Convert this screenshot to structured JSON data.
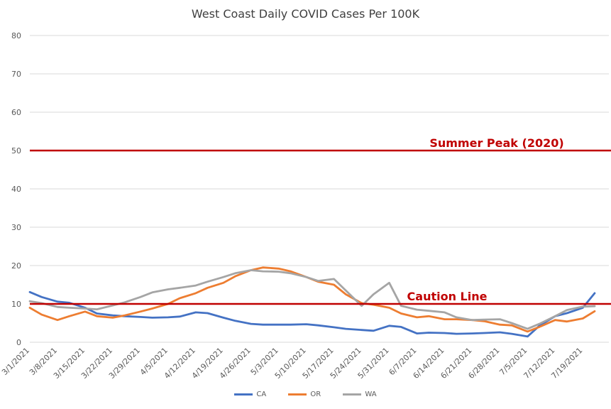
{
  "chart_data": {
    "type": "line",
    "title": "West Coast Daily COVID Cases Per 100K",
    "xlabel": "",
    "ylabel": "",
    "ylim": [
      0,
      80
    ],
    "yticks": [
      0,
      10,
      20,
      30,
      40,
      50,
      60,
      70,
      80
    ],
    "grid": true,
    "legend_position": "bottom",
    "x_tick_labels": [
      "3/1/2021",
      "3/8/2021",
      "3/15/2021",
      "3/22/2021",
      "3/29/2021",
      "4/5/2021",
      "4/12/2021",
      "4/19/2021",
      "4/26/2021",
      "5/3/2021",
      "5/10/2021",
      "5/17/2021",
      "5/24/2021",
      "5/31/2021",
      "6/7/2021",
      "6/14/2021",
      "6/21/2021",
      "6/28/2021",
      "7/5/2021",
      "7/12/2021",
      "7/19/2021"
    ],
    "x_dates": [
      "3/1/2021",
      "3/4/2021",
      "3/8/2021",
      "3/11/2021",
      "3/15/2021",
      "3/18/2021",
      "3/22/2021",
      "3/25/2021",
      "3/29/2021",
      "4/1/2021",
      "4/5/2021",
      "4/8/2021",
      "4/12/2021",
      "4/15/2021",
      "4/19/2021",
      "4/22/2021",
      "4/26/2021",
      "4/29/2021",
      "5/3/2021",
      "5/6/2021",
      "5/10/2021",
      "5/13/2021",
      "5/17/2021",
      "5/20/2021",
      "5/24/2021",
      "5/27/2021",
      "5/31/2021",
      "6/3/2021",
      "6/7/2021",
      "6/10/2021",
      "6/14/2021",
      "6/17/2021",
      "6/21/2021",
      "6/24/2021",
      "6/28/2021",
      "7/1/2021",
      "7/5/2021",
      "7/8/2021",
      "7/12/2021",
      "7/15/2021",
      "7/19/2021",
      "7/22/2021"
    ],
    "series": [
      {
        "name": "CA",
        "color": "#4472C4",
        "values": [
          13.1,
          11.8,
          10.6,
          10.3,
          9.0,
          7.5,
          7.0,
          6.8,
          6.6,
          6.4,
          6.5,
          6.7,
          7.8,
          7.6,
          6.4,
          5.6,
          4.8,
          4.6,
          4.6,
          4.6,
          4.7,
          4.4,
          3.9,
          3.5,
          3.2,
          3.0,
          4.3,
          4.0,
          2.3,
          2.5,
          2.4,
          2.2,
          2.3,
          2.4,
          2.6,
          2.2,
          1.5,
          4.3,
          6.8,
          7.6,
          9.0,
          12.8
        ]
      },
      {
        "name": "OR",
        "color": "#ED7D31",
        "values": [
          9.0,
          7.2,
          5.8,
          6.8,
          8.0,
          6.8,
          6.4,
          7.0,
          8.0,
          8.8,
          10.0,
          11.5,
          12.8,
          14.2,
          15.5,
          17.2,
          18.8,
          19.5,
          19.2,
          18.5,
          17.0,
          15.8,
          15.0,
          12.5,
          10.2,
          9.8,
          9.0,
          7.5,
          6.5,
          6.8,
          6.0,
          6.0,
          5.8,
          5.5,
          4.6,
          4.4,
          2.8,
          4.0,
          5.8,
          5.4,
          6.2,
          8.1
        ]
      },
      {
        "name": "WA",
        "color": "#A5A5A5",
        "values": [
          10.7,
          10.2,
          9.2,
          9.0,
          8.8,
          8.6,
          9.6,
          10.4,
          11.8,
          13.0,
          13.8,
          14.2,
          14.8,
          15.8,
          17.0,
          18.0,
          18.8,
          18.5,
          18.4,
          18.0,
          17.0,
          16.0,
          16.5,
          13.5,
          9.5,
          12.5,
          15.5,
          9.5,
          8.5,
          8.2,
          7.8,
          6.5,
          5.8,
          5.9,
          6.0,
          5.0,
          3.5,
          4.8,
          6.8,
          8.4,
          9.3,
          9.4
        ]
      }
    ],
    "reference_lines": [
      {
        "label": "Summer Peak (2020)",
        "value": 50,
        "color": "#C00000"
      },
      {
        "label": "Caution Line",
        "value": 10,
        "color": "#C00000"
      }
    ]
  }
}
